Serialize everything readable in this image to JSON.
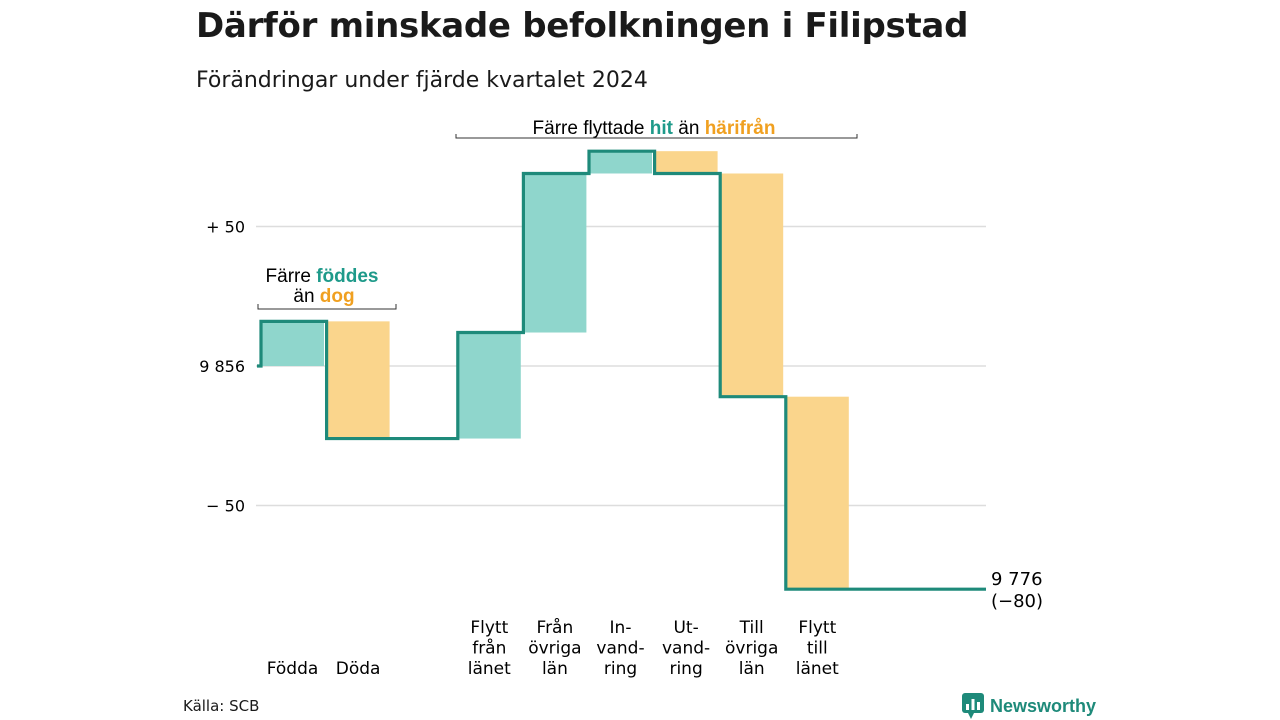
{
  "title": "Därför minskade befolkningen i Filipstad",
  "subtitle": "Förändringar under fjärde kvartalet 2024",
  "source": "Källa: SCB",
  "brand": "Newsworthy",
  "colors": {
    "increase": "#8fd6cc",
    "decrease": "#fad58c",
    "line": "#1e8a7a",
    "teal_text": "#1e9a8a",
    "orange_text": "#f0a020",
    "grid": "#dddddd"
  },
  "annotations": {
    "births": {
      "line1_pre": "Färre ",
      "line1_hl": "föddes",
      "line2_pre": "än ",
      "line2_hl": "dog"
    },
    "migration": {
      "pre": "Färre flyttade ",
      "hl1": "hit",
      "mid": " än ",
      "hl2": "härifrån"
    }
  },
  "chart_data": {
    "type": "waterfall",
    "title": "Därför minskade befolkningen i Filipstad",
    "subtitle": "Förändringar under fjärde kvartalet 2024",
    "start_value": 9856,
    "start_label": "9 856",
    "end_value": 9776,
    "end_label_line1": "9 776",
    "end_label_line2": "(−80)",
    "yticks": [
      {
        "value": 50,
        "label": "+ 50"
      },
      {
        "value": 0,
        "label": "9 856"
      },
      {
        "value": -50,
        "label": "− 50"
      }
    ],
    "grid": true,
    "steps": [
      {
        "key": "fodda",
        "label": [
          "Födda"
        ],
        "delta": 16,
        "kind": "increase"
      },
      {
        "key": "doda",
        "label": [
          "Döda"
        ],
        "delta": -42,
        "kind": "decrease"
      },
      {
        "key": "gap",
        "label": [],
        "delta": 0,
        "kind": "none"
      },
      {
        "key": "flytt_fran_lanet",
        "label": [
          "Flytt",
          "från",
          "länet"
        ],
        "delta": 38,
        "kind": "increase"
      },
      {
        "key": "fran_ovriga_lan",
        "label": [
          "Från",
          "övriga",
          "län"
        ],
        "delta": 57,
        "kind": "increase"
      },
      {
        "key": "invandring",
        "label": [
          "In-",
          "vand-",
          "ring"
        ],
        "delta": 8,
        "kind": "increase"
      },
      {
        "key": "utvandring",
        "label": [
          "Ut-",
          "vand-",
          "ring"
        ],
        "delta": -8,
        "kind": "decrease"
      },
      {
        "key": "till_ovriga_lan",
        "label": [
          "Till",
          "övriga",
          "län"
        ],
        "delta": -80,
        "kind": "decrease"
      },
      {
        "key": "flytt_till_lanet",
        "label": [
          "Flytt",
          "till",
          "länet"
        ],
        "delta": -69,
        "kind": "decrease"
      }
    ]
  }
}
